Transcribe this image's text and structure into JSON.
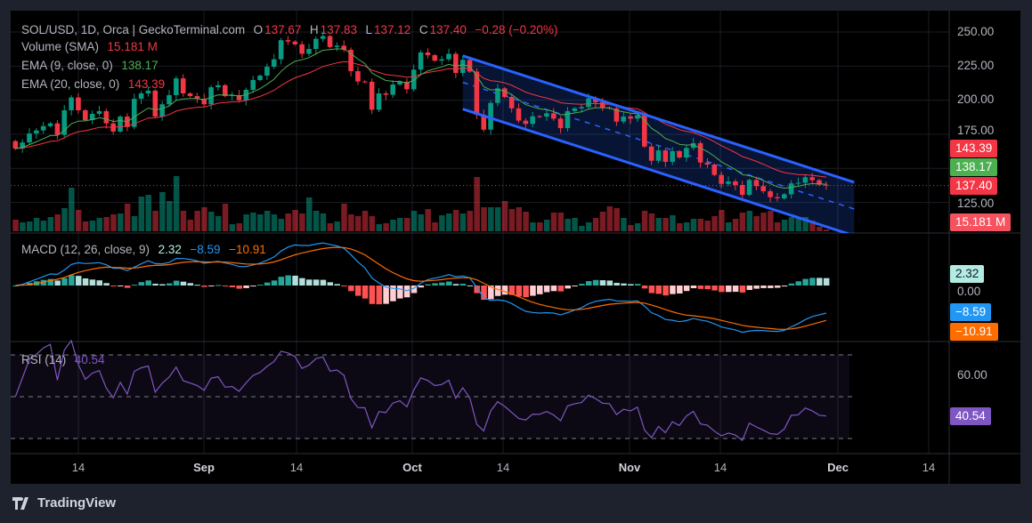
{
  "header": {
    "symbol_line": "SOL/USD, 1D, Orca | GeckoTerminal.com",
    "o_label": "O",
    "o": "137.67",
    "h_label": "H",
    "h": "137.83",
    "l_label": "L",
    "l": "137.12",
    "c_label": "C",
    "c": "137.40",
    "change": "−0.28 (−0.20%)"
  },
  "indicators": {
    "volume_label": "Volume (SMA)",
    "volume_value": "15.181 M",
    "ema9_label": "EMA (9, close, 0)",
    "ema9_value": "138.17",
    "ema20_label": "EMA (20, close, 0)",
    "ema20_value": "143.39",
    "macd_label": "MACD (12, 26, close, 9)",
    "macd_hist": "2.32",
    "macd_line": "−8.59",
    "macd_signal": "−10.91",
    "rsi_label": "RSI (14)",
    "rsi_value": "40.54"
  },
  "price_axis": [
    "250.00",
    "225.00",
    "200.00",
    "175.00",
    "125.00"
  ],
  "macd_axis": [
    "0.00"
  ],
  "rsi_axis": [
    "60.00"
  ],
  "tags": {
    "ema20": "143.39",
    "ema9": "138.17",
    "last": "137.40",
    "volume": "15.181 M",
    "hist": "2.32",
    "macd": "−8.59",
    "signal": "−10.91",
    "rsi": "40.54"
  },
  "time_axis": [
    {
      "label": "14",
      "month": false
    },
    {
      "label": "Sep",
      "month": true
    },
    {
      "label": "14",
      "month": false
    },
    {
      "label": "Oct",
      "month": true
    },
    {
      "label": "14",
      "month": false
    },
    {
      "label": "Nov",
      "month": true
    },
    {
      "label": "14",
      "month": false
    },
    {
      "label": "Dec",
      "month": true
    },
    {
      "label": "14",
      "month": false
    }
  ],
  "colors": {
    "up": "#089981",
    "down": "#f23645",
    "ema9": "#4caf50",
    "ema20": "#f23645",
    "macd": "#2196f3",
    "signal": "#ff6d00",
    "rsi": "#7e57c2",
    "channel": "#2962ff"
  },
  "branding": "TradingView",
  "chart_data": {
    "type": "candlestick",
    "title": "SOL/USD, 1D, Orca | GeckoTerminal.com",
    "ylim": [
      105,
      255
    ],
    "open_first": 170,
    "dates": [
      "08-05",
      "08-06",
      "08-07",
      "08-08",
      "08-09",
      "08-10",
      "08-11",
      "08-12",
      "08-13",
      "08-14",
      "08-15",
      "08-16",
      "08-17",
      "08-18",
      "08-19",
      "08-20",
      "08-21",
      "08-22",
      "08-23",
      "08-24",
      "08-25",
      "08-26",
      "08-27",
      "08-28",
      "08-29",
      "08-30",
      "08-31",
      "09-01",
      "09-02",
      "09-03",
      "09-04",
      "09-05",
      "09-06",
      "09-07",
      "09-08",
      "09-09",
      "09-10",
      "09-11",
      "09-12",
      "09-13",
      "09-14",
      "09-15",
      "09-16",
      "09-17",
      "09-18",
      "09-19",
      "09-20",
      "09-21",
      "09-22",
      "09-23",
      "09-24",
      "09-25",
      "09-26",
      "09-27",
      "09-28",
      "09-29",
      "09-30",
      "10-01",
      "10-02",
      "10-03",
      "10-04",
      "10-05",
      "10-06",
      "10-07",
      "10-08",
      "10-09",
      "10-10",
      "10-11",
      "10-12",
      "10-13",
      "10-14",
      "10-15",
      "10-16",
      "10-17",
      "10-18",
      "10-19",
      "10-20",
      "10-21",
      "10-22",
      "10-23",
      "10-24",
      "10-25",
      "10-26",
      "10-27",
      "10-28",
      "10-29",
      "10-30",
      "10-31",
      "11-01",
      "11-02",
      "11-03",
      "11-04",
      "11-05",
      "11-06",
      "11-07",
      "11-08",
      "11-09",
      "11-10",
      "11-11",
      "11-12",
      "11-13",
      "11-14",
      "11-15",
      "11-16",
      "11-17",
      "11-18",
      "11-19",
      "11-20",
      "11-21",
      "11-22",
      "11-23",
      "11-24",
      "11-25",
      "11-26",
      "11-27",
      "11-28",
      "11-29"
    ],
    "close": [
      164.5,
      169,
      175.6,
      177.8,
      181,
      183,
      174.5,
      192.6,
      202,
      192.6,
      185.4,
      190,
      192,
      183,
      177,
      188,
      180.4,
      201,
      205,
      207,
      188,
      197,
      203.7,
      216,
      205,
      203,
      201,
      197,
      209.5,
      211,
      203,
      203.7,
      200,
      207.6,
      214.8,
      218,
      224.5,
      230,
      244,
      243,
      241,
      234,
      237.6,
      245,
      247,
      239,
      240,
      237,
      221.3,
      213.7,
      213.5,
      193,
      205,
      204,
      211.5,
      213.5,
      208,
      222.4,
      235,
      233,
      229,
      230,
      234,
      220,
      229.6,
      221,
      189.3,
      178.4,
      198,
      208.7,
      202.4,
      194,
      185,
      182.6,
      188.2,
      188,
      190.4,
      186.5,
      179.5,
      192,
      194,
      195,
      201.3,
      198.5,
      194.5,
      194,
      184.3,
      188,
      186.5,
      189,
      166,
      155.6,
      163.2,
      154.8,
      162.6,
      158,
      165,
      168.5,
      154.3,
      152.8,
      145.2,
      138.6,
      140.4,
      137.8,
      130.6,
      141.5,
      137,
      133.2,
      128.9,
      128,
      131,
      139,
      139.4,
      143.5,
      141.3,
      138,
      137.4
    ],
    "volume_m": [
      13,
      10,
      11,
      15,
      12,
      16,
      19,
      26,
      49,
      24,
      11,
      12,
      15,
      16,
      19,
      20,
      31,
      17,
      39,
      41,
      23,
      44,
      34,
      62,
      23,
      13,
      23,
      27,
      22,
      17,
      31,
      8,
      9,
      19,
      21,
      19,
      23,
      19,
      14,
      20,
      24,
      20,
      38,
      23,
      20,
      9,
      11,
      31,
      19,
      17,
      23,
      17,
      8,
      9,
      13,
      15,
      15,
      23,
      19,
      25,
      10,
      18,
      20,
      24,
      20,
      23,
      61,
      27,
      27,
      27,
      34,
      25,
      27,
      22,
      10,
      10,
      13,
      21,
      21,
      14,
      15,
      6,
      10,
      15,
      22,
      28,
      26,
      15,
      7,
      9,
      23,
      20,
      15,
      15,
      18,
      9,
      10,
      14,
      14,
      12,
      17,
      24,
      10,
      14,
      21,
      23,
      17,
      21,
      23,
      10,
      13,
      16,
      16,
      16,
      12,
      5,
      2
    ],
    "channel": {
      "upper": [
        {
          "date": "10-08",
          "price": 232.6
        },
        {
          "date": "12-03",
          "price": 139.8
        }
      ],
      "lower": [
        {
          "date": "10-08",
          "price": 193.5
        },
        {
          "date": "12-03",
          "price": 100.6
        }
      ]
    },
    "rsi_levels": [
      70,
      50,
      30
    ]
  }
}
